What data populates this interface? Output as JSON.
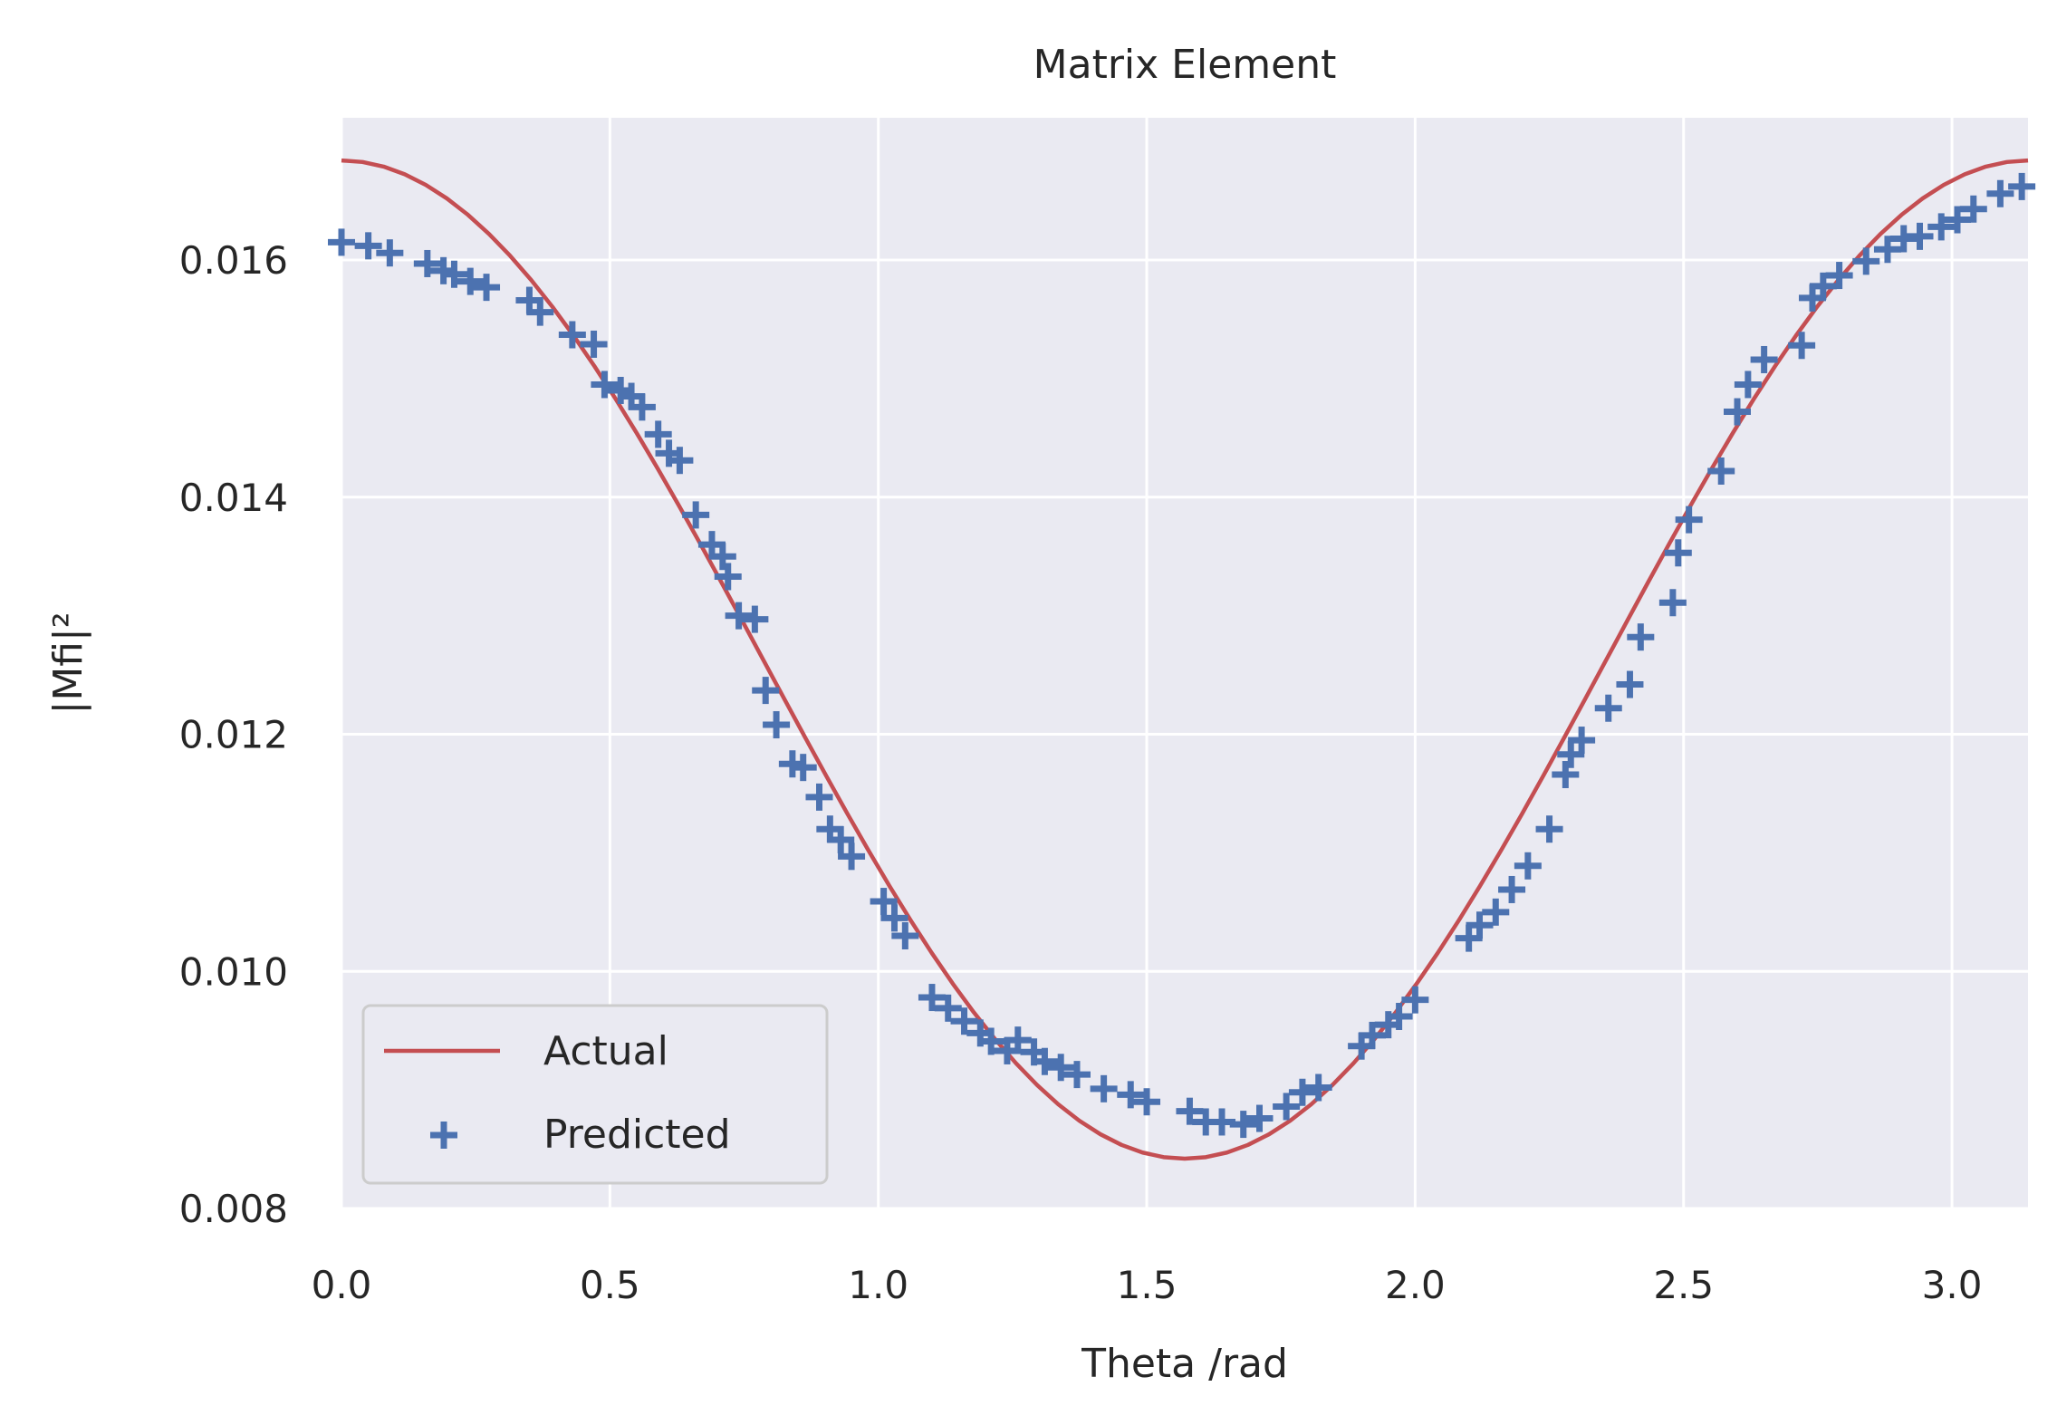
{
  "chart_data": {
    "type": "scatter",
    "title": "Matrix Element",
    "xlabel": "Theta /rad",
    "ylabel": "|Mfi|²",
    "xlim": [
      0,
      3.1416
    ],
    "ylim": [
      0.008,
      0.0172
    ],
    "xticks": [
      0.0,
      0.5,
      1.0,
      1.5,
      2.0,
      2.5,
      3.0
    ],
    "xtick_labels": [
      "0.0",
      "0.5",
      "1.0",
      "1.5",
      "2.0",
      "2.5",
      "3.0"
    ],
    "yticks": [
      0.008,
      0.01,
      0.012,
      0.014,
      0.016
    ],
    "ytick_labels": [
      "0.008",
      "0.010",
      "0.012",
      "0.014",
      "0.016"
    ],
    "grid": true,
    "legend_position": "lower-left",
    "series": [
      {
        "name": "Actual",
        "kind": "line",
        "color": "#c44e52",
        "function": "0.00842 + 0.00842*cos(theta)^2"
      },
      {
        "name": "Predicted",
        "kind": "scatter",
        "marker": "+",
        "color": "#4c72b0",
        "x": [
          0.0,
          0.05,
          0.09,
          0.16,
          0.19,
          0.21,
          0.24,
          0.27,
          0.35,
          0.37,
          0.43,
          0.47,
          0.49,
          0.52,
          0.54,
          0.56,
          0.59,
          0.61,
          0.63,
          0.66,
          0.69,
          0.71,
          0.72,
          0.74,
          0.77,
          0.79,
          0.81,
          0.84,
          0.86,
          0.89,
          0.91,
          0.93,
          0.95,
          1.01,
          1.03,
          1.05,
          1.1,
          1.13,
          1.16,
          1.19,
          1.21,
          1.24,
          1.26,
          1.29,
          1.31,
          1.34,
          1.37,
          1.42,
          1.47,
          1.5,
          1.58,
          1.61,
          1.64,
          1.68,
          1.71,
          1.76,
          1.79,
          1.82,
          1.9,
          1.92,
          1.95,
          1.97,
          2.0,
          2.1,
          2.12,
          2.15,
          2.18,
          2.21,
          2.25,
          2.28,
          2.29,
          2.31,
          2.36,
          2.4,
          2.42,
          2.48,
          2.49,
          2.51,
          2.57,
          2.6,
          2.62,
          2.65,
          2.72,
          2.74,
          2.76,
          2.79,
          2.84,
          2.88,
          2.91,
          2.94,
          2.98,
          3.01,
          3.04,
          3.09,
          3.13
        ],
        "y": [
          0.01615,
          0.01612,
          0.01606,
          0.01597,
          0.01591,
          0.01588,
          0.01582,
          0.01577,
          0.01566,
          0.01556,
          0.01537,
          0.01529,
          0.01495,
          0.0149,
          0.01485,
          0.01476,
          0.01453,
          0.01437,
          0.01431,
          0.01385,
          0.0136,
          0.0135,
          0.01333,
          0.013,
          0.01297,
          0.01237,
          0.01208,
          0.01175,
          0.01172,
          0.01147,
          0.0112,
          0.01111,
          0.01097,
          0.01059,
          0.01045,
          0.0103,
          0.00978,
          0.00969,
          0.00958,
          0.00948,
          0.00941,
          0.00933,
          0.00942,
          0.00932,
          0.00924,
          0.00919,
          0.00913,
          0.00901,
          0.00896,
          0.0089,
          0.00882,
          0.00873,
          0.00873,
          0.00871,
          0.00876,
          0.00886,
          0.00898,
          0.00902,
          0.00937,
          0.00946,
          0.00955,
          0.00962,
          0.00976,
          0.01028,
          0.01039,
          0.0105,
          0.01069,
          0.01089,
          0.0112,
          0.01166,
          0.01183,
          0.01195,
          0.01222,
          0.01242,
          0.01282,
          0.01311,
          0.01353,
          0.01381,
          0.01422,
          0.01472,
          0.01495,
          0.01516,
          0.01528,
          0.01568,
          0.01578,
          0.01587,
          0.01599,
          0.01609,
          0.01618,
          0.0162,
          0.01628,
          0.01634,
          0.01643,
          0.01656,
          0.01662
        ]
      }
    ]
  }
}
